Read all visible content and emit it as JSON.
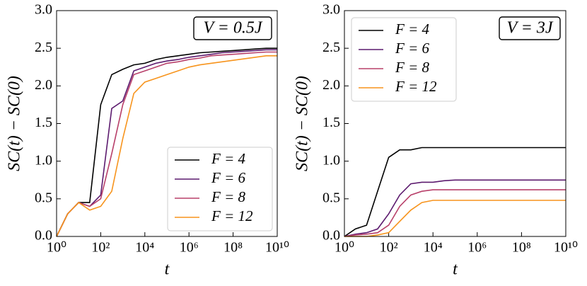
{
  "chart_data": [
    {
      "type": "line",
      "xlabel": "t",
      "ylabel": "SC(t) − SC(0)",
      "annotation": "V = 0.5J",
      "xscale": "log",
      "legend": "lower right",
      "x": [
        1,
        3.16,
        10,
        31.6,
        100,
        316,
        1000,
        3160,
        10000.0,
        31600.0,
        100000.0,
        316000.0,
        1000000.0,
        3160000.0,
        10000000.0,
        31600000.0,
        100000000.0,
        316000000.0,
        1000000000.0,
        3160000000.0,
        10000000000.0
      ],
      "xlim": [
        1,
        10000000000.0
      ],
      "xticks": [
        {
          "value": 1,
          "label": "10⁰"
        },
        {
          "value": 100,
          "label": "10²"
        },
        {
          "value": 10000.0,
          "label": "10⁴"
        },
        {
          "value": 1000000.0,
          "label": "10⁶"
        },
        {
          "value": 100000000.0,
          "label": "10⁸"
        },
        {
          "value": 10000000000.0,
          "label": "10¹⁰"
        }
      ],
      "ylim": [
        0,
        3
      ],
      "yticks": [
        {
          "value": 0,
          "label": "0.0"
        },
        0.5,
        {
          "value": 1,
          "label": "1.0"
        },
        1.5,
        {
          "value": 2,
          "label": "2.0"
        },
        2.5,
        {
          "value": 3,
          "label": "3.0"
        }
      ],
      "series": [
        {
          "name": "F = 4",
          "color": "#000000",
          "values": [
            0,
            0.3,
            0.45,
            0.45,
            1.75,
            2.15,
            2.22,
            2.28,
            2.3,
            2.35,
            2.38,
            2.4,
            2.42,
            2.44,
            2.45,
            2.46,
            2.47,
            2.48,
            2.49,
            2.5,
            2.5
          ]
        },
        {
          "name": "F = 6",
          "color": "#5c1a6e",
          "values": [
            0,
            0.3,
            0.45,
            0.4,
            0.55,
            1.7,
            1.8,
            2.2,
            2.25,
            2.3,
            2.33,
            2.35,
            2.38,
            2.4,
            2.42,
            2.44,
            2.45,
            2.46,
            2.47,
            2.48,
            2.48
          ]
        },
        {
          "name": "F = 8",
          "color": "#b8406a",
          "values": [
            0,
            0.3,
            0.45,
            0.4,
            0.5,
            1.1,
            1.75,
            2.15,
            2.2,
            2.25,
            2.3,
            2.32,
            2.35,
            2.37,
            2.4,
            2.41,
            2.42,
            2.43,
            2.44,
            2.45,
            2.45
          ]
        },
        {
          "name": "F = 12",
          "color": "#f7941d",
          "values": [
            0,
            0.3,
            0.45,
            0.35,
            0.4,
            0.6,
            1.3,
            1.9,
            2.05,
            2.1,
            2.15,
            2.2,
            2.25,
            2.28,
            2.3,
            2.32,
            2.34,
            2.36,
            2.38,
            2.4,
            2.4
          ]
        }
      ]
    },
    {
      "type": "line",
      "xlabel": "t",
      "ylabel": "SC(t) − SC(0)",
      "annotation": "V = 3J",
      "xscale": "log",
      "legend": "upper left",
      "x": [
        1,
        3.16,
        10,
        31.6,
        100,
        316,
        1000,
        3160,
        10000.0,
        31600.0,
        100000.0,
        316000.0,
        1000000.0,
        3160000.0,
        10000000.0,
        31600000.0,
        100000000.0,
        316000000.0,
        1000000000.0,
        3160000000.0,
        10000000000.0
      ],
      "xlim": [
        1,
        10000000000.0
      ],
      "xticks": [
        {
          "value": 1,
          "label": "10⁰"
        },
        {
          "value": 100,
          "label": "10²"
        },
        {
          "value": 10000.0,
          "label": "10⁴"
        },
        {
          "value": 1000000.0,
          "label": "10⁶"
        },
        {
          "value": 100000000.0,
          "label": "10⁸"
        },
        {
          "value": 10000000000.0,
          "label": "10¹⁰"
        }
      ],
      "ylim": [
        0,
        3
      ],
      "yticks": [
        {
          "value": 0,
          "label": "0.0"
        },
        0.5,
        {
          "value": 1,
          "label": "1.0"
        },
        1.5,
        {
          "value": 2,
          "label": "2.0"
        },
        2.5,
        {
          "value": 3,
          "label": "3.0"
        }
      ],
      "series": [
        {
          "name": "F = 4",
          "color": "#000000",
          "values": [
            0,
            0.1,
            0.15,
            0.6,
            1.05,
            1.15,
            1.15,
            1.18,
            1.18,
            1.18,
            1.18,
            1.18,
            1.18,
            1.18,
            1.18,
            1.18,
            1.18,
            1.18,
            1.18,
            1.18,
            1.18
          ]
        },
        {
          "name": "F = 6",
          "color": "#5c1a6e",
          "values": [
            0,
            0.03,
            0.05,
            0.1,
            0.3,
            0.55,
            0.7,
            0.72,
            0.72,
            0.74,
            0.75,
            0.75,
            0.75,
            0.75,
            0.75,
            0.75,
            0.75,
            0.75,
            0.75,
            0.75,
            0.75
          ]
        },
        {
          "name": "F = 8",
          "color": "#b8406a",
          "values": [
            0,
            0.02,
            0.03,
            0.05,
            0.15,
            0.4,
            0.55,
            0.6,
            0.62,
            0.62,
            0.62,
            0.62,
            0.62,
            0.62,
            0.62,
            0.62,
            0.62,
            0.62,
            0.62,
            0.62,
            0.62
          ]
        },
        {
          "name": "F = 12",
          "color": "#f7941d",
          "values": [
            0,
            0,
            0,
            0.02,
            0.05,
            0.2,
            0.35,
            0.45,
            0.48,
            0.48,
            0.48,
            0.48,
            0.48,
            0.48,
            0.48,
            0.48,
            0.48,
            0.48,
            0.48,
            0.48,
            0.48
          ]
        }
      ]
    }
  ]
}
